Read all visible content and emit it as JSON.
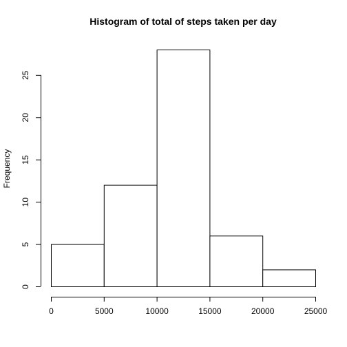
{
  "chart_data": {
    "type": "bar",
    "title": "Histogram of total of steps taken per day",
    "xlabel": "",
    "ylabel": "Frequency",
    "bins": [
      {
        "start": 0,
        "end": 5000,
        "count": 5
      },
      {
        "start": 5000,
        "end": 10000,
        "count": 12
      },
      {
        "start": 10000,
        "end": 15000,
        "count": 28
      },
      {
        "start": 15000,
        "end": 20000,
        "count": 6
      },
      {
        "start": 20000,
        "end": 25000,
        "count": 2
      }
    ],
    "values": [
      5,
      12,
      28,
      6,
      2
    ],
    "xlim": [
      0,
      25000
    ],
    "ylim": [
      0,
      28
    ],
    "xticks": [
      0,
      5000,
      10000,
      15000,
      20000,
      25000
    ],
    "yticks": [
      0,
      5,
      10,
      15,
      20,
      25
    ],
    "grid": false
  }
}
